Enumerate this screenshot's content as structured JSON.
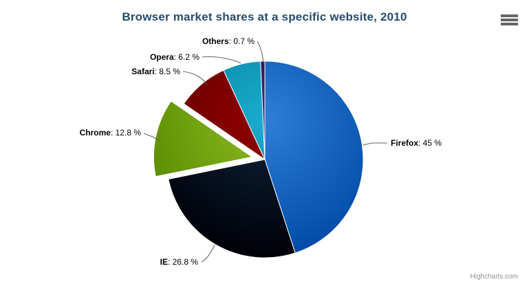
{
  "header": {
    "title": "Browser market shares at a specific website, 2010"
  },
  "toolbar": {
    "context_menu_icon": "hamburger-icon"
  },
  "credits": {
    "label": "Highcharts.com"
  },
  "colors": {
    "background": "#ffffff",
    "title": "#274b6d",
    "data_label": "#000000",
    "connector": "#606060",
    "slice_border": "#ffffff",
    "credits_text": "#909090",
    "menu_icon": "#666666"
  },
  "chart_data": {
    "type": "pie",
    "title": "Browser market shares at a specific website, 2010",
    "unit": "%",
    "label_format": "{name}: {y} %",
    "start_angle_deg": 0,
    "direction": "clockwise",
    "legend": "none",
    "points": [
      {
        "name": "Firefox",
        "y": 45,
        "color": "#2f7ed8",
        "sliced": false
      },
      {
        "name": "IE",
        "y": 26.8,
        "color": "#0d233a",
        "sliced": false
      },
      {
        "name": "Chrome",
        "y": 12.8,
        "color": "#8bbc21",
        "sliced": true
      },
      {
        "name": "Safari",
        "y": 8.5,
        "color": "#910000",
        "sliced": false
      },
      {
        "name": "Opera",
        "y": 6.2,
        "color": "#1aadce",
        "sliced": false
      },
      {
        "name": "Others",
        "y": 0.7,
        "color": "#492970",
        "sliced": false
      }
    ]
  }
}
